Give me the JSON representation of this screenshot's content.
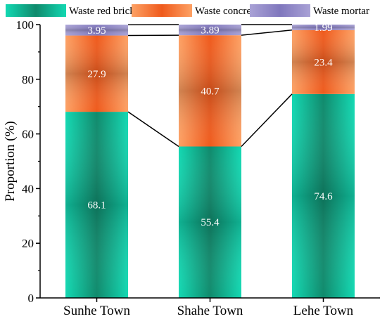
{
  "chart_data": {
    "type": "bar",
    "stacked": true,
    "categories": [
      "Sunhe Town",
      "Shahe Town",
      "Lehe Town"
    ],
    "series": [
      {
        "name": "Waste red bricks",
        "values": [
          68.1,
          55.4,
          74.6
        ],
        "labels": [
          "68.1",
          "55.4",
          "74.6"
        ],
        "color": "#12d8b2",
        "color_dark": "#0f8a6c"
      },
      {
        "name": "Waste concrete",
        "values": [
          27.9,
          40.7,
          23.4
        ],
        "labels": [
          "27.9",
          "40.7",
          "23.4"
        ],
        "color": "#fda164",
        "color_dark": "#ef5a1c"
      },
      {
        "name": "Waste mortar",
        "values": [
          3.95,
          3.89,
          1.99
        ],
        "labels": [
          "3.95",
          "3.89",
          "1.99"
        ],
        "color": "#a9a2d6",
        "color_dark": "#8077bd"
      }
    ],
    "ylabel": "Proportion (%)",
    "xlabel": "",
    "ylim": [
      0,
      100
    ],
    "yticks": [
      "0",
      "20",
      "40",
      "60",
      "80",
      "100"
    ],
    "legend_position": "top",
    "connector_lines": true,
    "grid": false
  }
}
